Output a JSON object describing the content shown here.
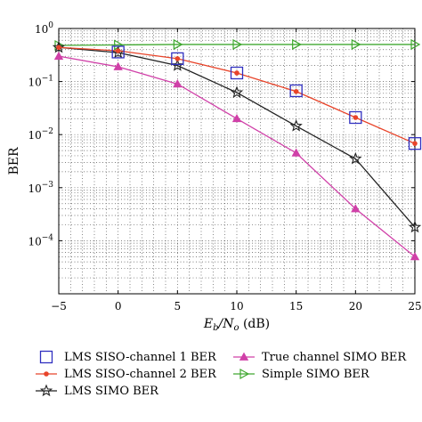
{
  "chart_data": {
    "type": "line",
    "xlabel": "E_b/N_o (dB)",
    "xlabel_parts": {
      "main": "E",
      "sub1": "b",
      "slash": "/N",
      "sub2": "o",
      "unit": " (dB)"
    },
    "ylabel": "BER",
    "xlim": [
      -5,
      25
    ],
    "ylim": [
      1e-05,
      1
    ],
    "yscale": "log",
    "grid": true,
    "legend_position": "bottom",
    "x_ticks": [
      "−5",
      "0",
      "5",
      "10",
      "15",
      "20",
      "25"
    ],
    "y_ticks": [
      {
        "base": "10",
        "exp": "0"
      },
      {
        "base": "10",
        "exp": "−1"
      },
      {
        "base": "10",
        "exp": "−2"
      },
      {
        "base": "10",
        "exp": "−3"
      },
      {
        "base": "10",
        "exp": "−4"
      }
    ],
    "series": [
      {
        "name": "LMS SISO-channel 1 BER",
        "color": "#3030c0",
        "marker": "square",
        "line": false,
        "x": [
          0,
          5,
          10,
          15,
          20,
          25
        ],
        "y": [
          0.36,
          0.27,
          0.145,
          0.067,
          0.021,
          0.0068
        ]
      },
      {
        "name": "LMS SISO-channel 2 BER",
        "color": "#e8442a",
        "marker": "dot",
        "line": true,
        "x": [
          -5,
          0,
          5,
          10,
          15,
          20,
          25
        ],
        "y": [
          0.44,
          0.38,
          0.27,
          0.145,
          0.065,
          0.021,
          0.0068
        ]
      },
      {
        "name": "LMS SIMO BER",
        "color": "#222222",
        "marker": "star",
        "line": true,
        "x": [
          -5,
          0,
          5,
          10,
          15,
          20,
          25
        ],
        "y": [
          0.44,
          0.35,
          0.2,
          0.062,
          0.0145,
          0.0035,
          0.00018
        ]
      },
      {
        "name": "True channel SIMO BER",
        "color": "#d040a8",
        "marker": "triangle-up",
        "line": true,
        "x": [
          -5,
          0,
          5,
          10,
          15,
          20,
          25
        ],
        "y": [
          0.3,
          0.19,
          0.09,
          0.02,
          0.0045,
          0.0004,
          5e-05
        ]
      },
      {
        "name": "Simple SIMO BER",
        "color": "#40a830",
        "marker": "triangle-right",
        "line": true,
        "x": [
          -5,
          0,
          5,
          10,
          15,
          20,
          25
        ],
        "y": [
          0.48,
          0.49,
          0.5,
          0.5,
          0.5,
          0.5,
          0.5
        ]
      }
    ]
  }
}
